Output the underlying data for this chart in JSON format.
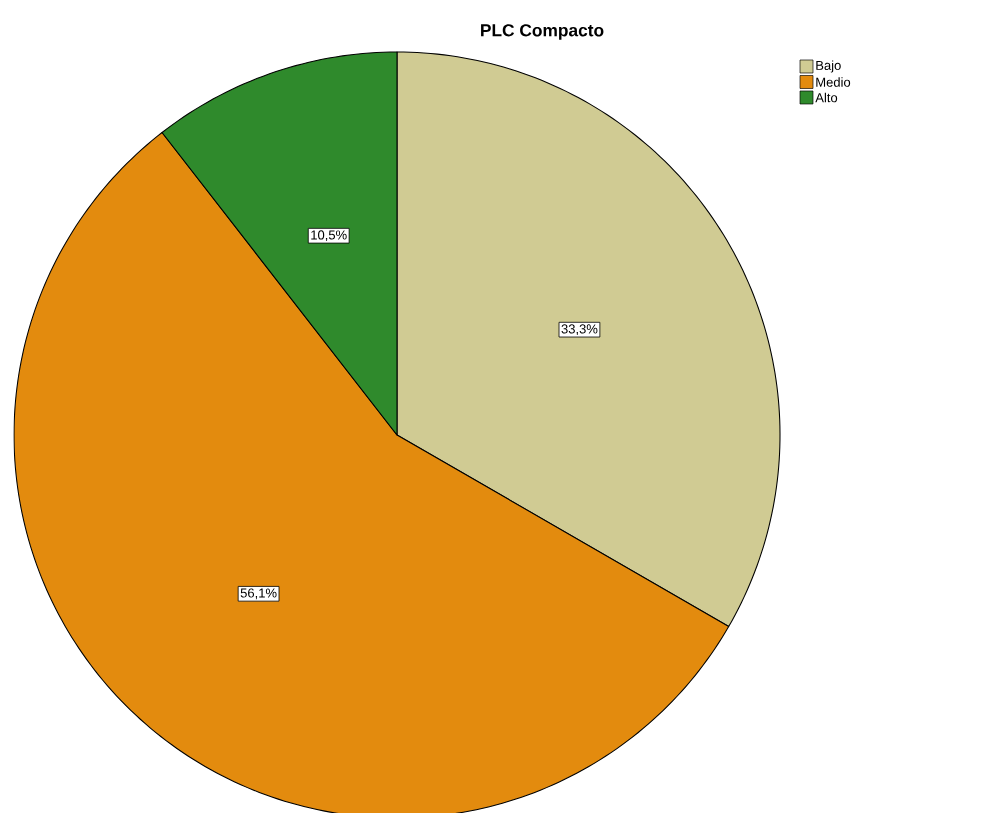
{
  "chart_data": {
    "type": "pie",
    "title": "PLC Compacto",
    "categories": [
      "Bajo",
      "Medio",
      "Alto"
    ],
    "values": [
      33.3,
      56.1,
      10.5
    ],
    "value_labels": [
      "33,3%",
      "56,1%",
      "10,5%"
    ],
    "colors": [
      "#d0cb93",
      "#e38b0e",
      "#2f8a2c"
    ],
    "legend": "top right"
  }
}
